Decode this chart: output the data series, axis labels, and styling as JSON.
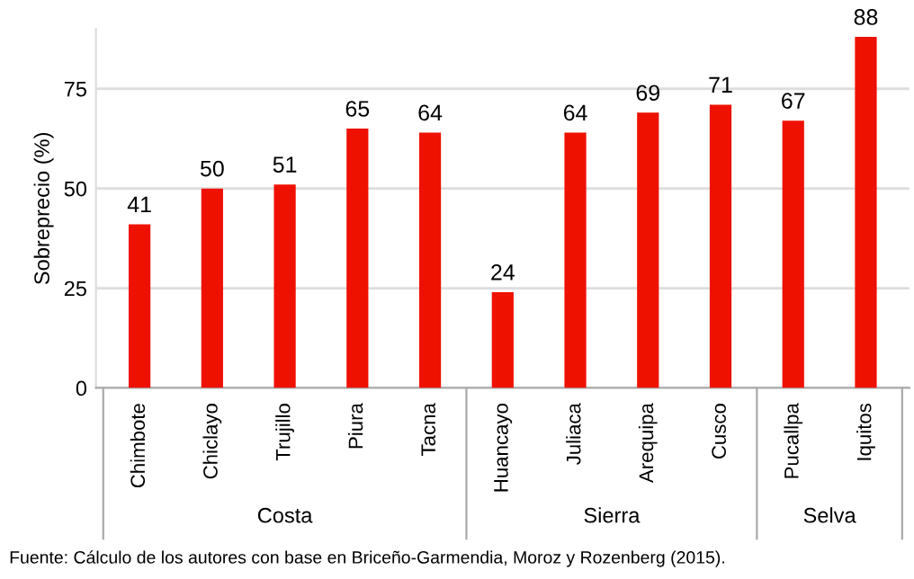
{
  "chart_data": {
    "type": "bar",
    "ylabel": "Sobreprecio (%)",
    "categories": [
      "Chimbote",
      "Chiclayo",
      "Trujillo",
      "Piura",
      "Tacna",
      "Huancayo",
      "Juliaca",
      "Arequipa",
      "Cusco",
      "Pucallpa",
      "Iquitos"
    ],
    "values": [
      41,
      50,
      51,
      65,
      64,
      24,
      64,
      69,
      71,
      67,
      88
    ],
    "color": "#ee1100",
    "ylim": [
      0,
      90
    ],
    "yticks": [
      0,
      25,
      50,
      75
    ],
    "grid": "y",
    "data_labels": true,
    "annotations": [
      "Costa",
      "Sierra",
      "Selva",
      "Fuente: Cálculo de los autores con base en Briceño-Garmendia, Moroz y Rozenberg (2015)."
    ]
  }
}
